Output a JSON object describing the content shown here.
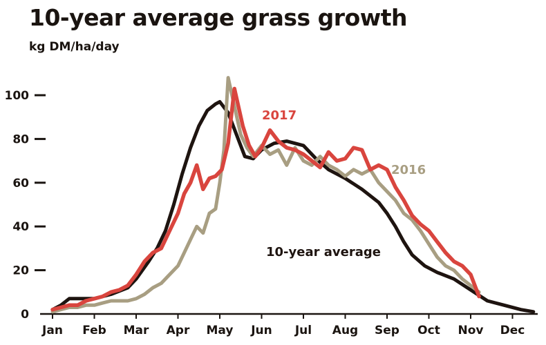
{
  "chart_data": {
    "type": "line",
    "title": "10-year average grass growth",
    "subtitle": "kg DM/ha/day",
    "xlabel": "",
    "ylabel": "kg DM/ha/day",
    "x_categories": [
      "Jan",
      "Feb",
      "Mar",
      "Apr",
      "May",
      "Jun",
      "Jul",
      "Aug",
      "Sep",
      "Oct",
      "Nov",
      "Dec"
    ],
    "x_range": [
      0,
      11.5
    ],
    "ylim": [
      0,
      110
    ],
    "y_ticks": [
      0,
      20,
      40,
      60,
      80,
      100
    ],
    "grid": false,
    "colors": {
      "10-year average": "#1e1410",
      "2017": "#d9453e",
      "2016": "#a89e82",
      "axis": "#1a1410"
    },
    "series": [
      {
        "name": "10-year average",
        "label_text": "10-year average",
        "x": [
          0,
          0.2,
          0.4,
          0.6,
          1.0,
          1.4,
          1.8,
          2.0,
          2.3,
          2.5,
          2.7,
          2.9,
          3.1,
          3.3,
          3.5,
          3.7,
          3.9,
          4.0,
          4.2,
          4.4,
          4.6,
          4.8,
          5.0,
          5.3,
          5.6,
          6.0,
          6.3,
          6.6,
          7.0,
          7.4,
          7.8,
          8.0,
          8.2,
          8.4,
          8.6,
          8.9,
          9.2,
          9.6,
          10.0,
          10.4,
          10.8,
          11.2,
          11.5
        ],
        "values": [
          2,
          4,
          7,
          7,
          7,
          9,
          12,
          16,
          24,
          30,
          38,
          50,
          64,
          76,
          86,
          93,
          96,
          97,
          92,
          82,
          72,
          71,
          75,
          78,
          79,
          77,
          71,
          66,
          62,
          57,
          51,
          46,
          40,
          33,
          27,
          22,
          19,
          16,
          11,
          6,
          4,
          2,
          1
        ]
      },
      {
        "name": "2017",
        "label_text": "2017",
        "x": [
          0,
          0.2,
          0.4,
          0.6,
          0.8,
          1.0,
          1.2,
          1.4,
          1.6,
          1.8,
          2.0,
          2.2,
          2.4,
          2.6,
          2.8,
          3.0,
          3.15,
          3.3,
          3.45,
          3.6,
          3.75,
          3.9,
          4.05,
          4.2,
          4.35,
          4.55,
          4.7,
          4.85,
          5.0,
          5.2,
          5.4,
          5.6,
          5.8,
          6.0,
          6.2,
          6.4,
          6.6,
          6.8,
          7.0,
          7.2,
          7.4,
          7.6,
          7.8,
          8.0,
          8.2,
          8.4,
          8.6,
          8.8,
          9.0,
          9.2,
          9.4,
          9.6,
          9.8,
          10.0,
          10.2
        ],
        "values": [
          2,
          3,
          4,
          4,
          6,
          7,
          8,
          10,
          11,
          13,
          18,
          24,
          28,
          30,
          38,
          46,
          55,
          60,
          68,
          57,
          62,
          63,
          66,
          78,
          103,
          86,
          77,
          72,
          76,
          84,
          79,
          76,
          75,
          73,
          70,
          67,
          74,
          70,
          71,
          76,
          75,
          66,
          68,
          66,
          58,
          52,
          45,
          41,
          38,
          33,
          28,
          24,
          22,
          18,
          8
        ]
      },
      {
        "name": "2016",
        "label_text": "2016",
        "x": [
          0,
          0.2,
          0.4,
          0.6,
          0.8,
          1.0,
          1.2,
          1.4,
          1.6,
          1.8,
          2.0,
          2.2,
          2.4,
          2.6,
          2.8,
          3.0,
          3.15,
          3.3,
          3.45,
          3.6,
          3.75,
          3.9,
          4.0,
          4.1,
          4.2,
          4.35,
          4.5,
          4.65,
          4.8,
          5.0,
          5.2,
          5.4,
          5.6,
          5.8,
          6.0,
          6.2,
          6.4,
          6.6,
          6.8,
          7.0,
          7.2,
          7.4,
          7.6,
          7.8,
          8.0,
          8.2,
          8.4,
          8.6,
          8.8,
          9.0,
          9.2,
          9.4,
          9.6,
          9.8,
          10.0,
          10.2
        ],
        "values": [
          1,
          2,
          3,
          3,
          4,
          4,
          5,
          6,
          6,
          6,
          7,
          9,
          12,
          14,
          18,
          22,
          28,
          34,
          40,
          37,
          46,
          48,
          60,
          75,
          108,
          95,
          82,
          76,
          72,
          77,
          73,
          75,
          68,
          76,
          70,
          68,
          72,
          68,
          66,
          63,
          66,
          64,
          66,
          60,
          56,
          52,
          46,
          43,
          38,
          32,
          26,
          22,
          20,
          16,
          13,
          10
        ]
      }
    ]
  }
}
